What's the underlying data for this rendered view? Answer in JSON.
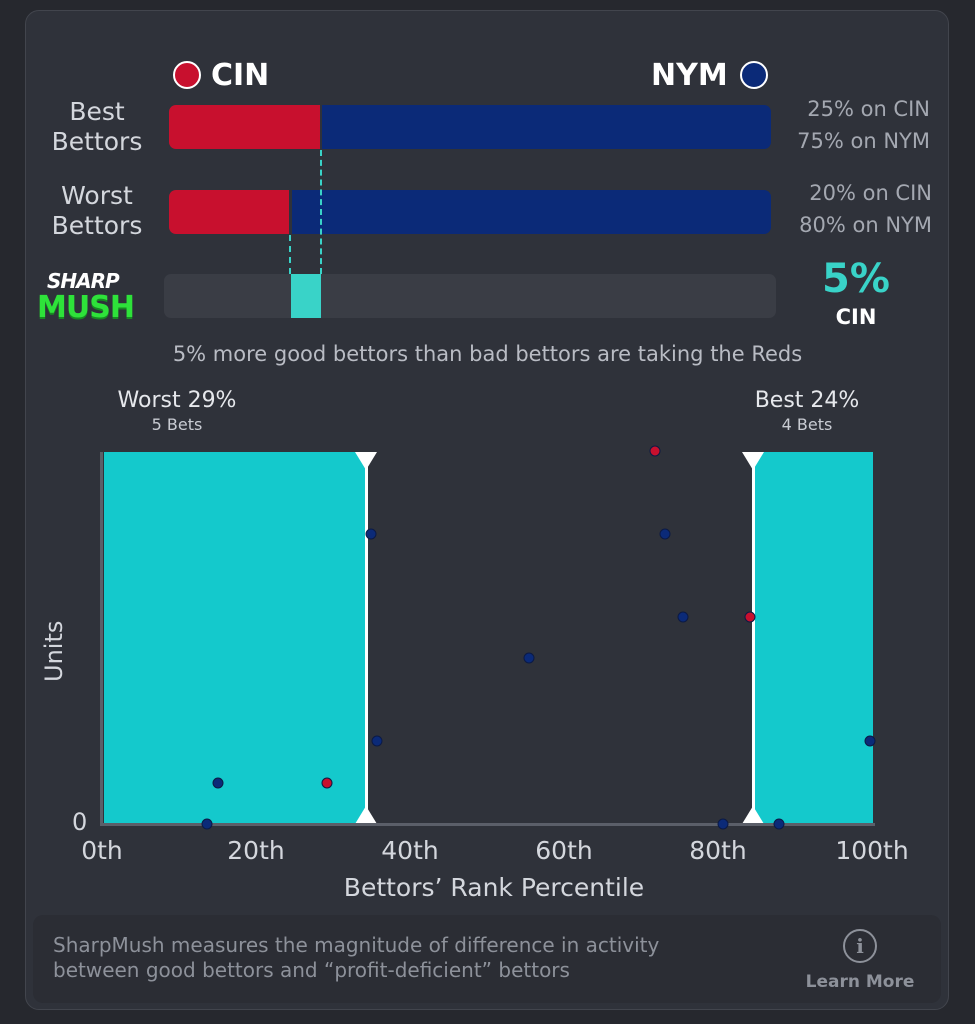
{
  "teams": {
    "left": {
      "abbr": "CIN",
      "color": "#c8102e"
    },
    "right": {
      "abbr": "NYM",
      "color": "#0b2a78"
    }
  },
  "rows": [
    {
      "label_line1": "Best",
      "label_line2": "Bettors",
      "cin_pct": 25,
      "line1": "25% on CIN",
      "line2": "75% on NYM"
    },
    {
      "label_line1": "Worst",
      "label_line2": "Bettors",
      "cin_pct": 20,
      "line1": "20% on CIN",
      "line2": "80% on NYM"
    }
  ],
  "sharpmush": {
    "logo_line1": "SHARP",
    "logo_line2": "MUSH",
    "value": "5%",
    "team": "CIN",
    "summary": "5% more good bettors than bad bettors are taking the Reds",
    "accent": "#39d3c8"
  },
  "chart": {
    "worst_label": "Worst 29%",
    "worst_bets": "5 Bets",
    "best_label": "Best 24%",
    "best_bets": "4 Bets",
    "y_axis_label": "Units",
    "y_zero": "0",
    "x_axis_label": "Bettors’ Rank Percentile",
    "x_ticks": [
      "0th",
      "20th",
      "40th",
      "60th",
      "80th",
      "100th"
    ],
    "zone_color": "#14c9cc"
  },
  "chart_data": {
    "type": "scatter",
    "xlabel": "Bettors’ Rank Percentile",
    "ylabel": "Units",
    "xlim": [
      0,
      100
    ],
    "x_tick_labels": [
      "0th",
      "20th",
      "40th",
      "60th",
      "80th",
      "100th"
    ],
    "y_tick_labels": [
      "0"
    ],
    "shaded_ranges": [
      {
        "label": "Worst 29%",
        "sub": "5 Bets",
        "from": 0,
        "to": 34.5
      },
      {
        "label": "Best 24%",
        "sub": "4 Bets",
        "from": 84.5,
        "to": 100
      }
    ],
    "series": [
      {
        "name": "CIN",
        "color": "#c8102e",
        "points": [
          [
            29.2,
            1
          ],
          [
            71.8,
            9
          ],
          [
            84.2,
            5
          ]
        ]
      },
      {
        "name": "NYM",
        "color": "#0b2a78",
        "points": [
          [
            13.6,
            0
          ],
          [
            15.1,
            1
          ],
          [
            34.9,
            7
          ],
          [
            35.7,
            2
          ],
          [
            55.4,
            4
          ],
          [
            73.1,
            7
          ],
          [
            75.4,
            5
          ],
          [
            80.6,
            0
          ],
          [
            87.9,
            0
          ],
          [
            99.8,
            2
          ]
        ]
      }
    ]
  },
  "footer": {
    "line1": "SharpMush measures the magnitude of difference in activity",
    "line2": "between good bettors and “profit-deficient” bettors",
    "info_glyph": "i",
    "learn_more": "Learn More"
  }
}
